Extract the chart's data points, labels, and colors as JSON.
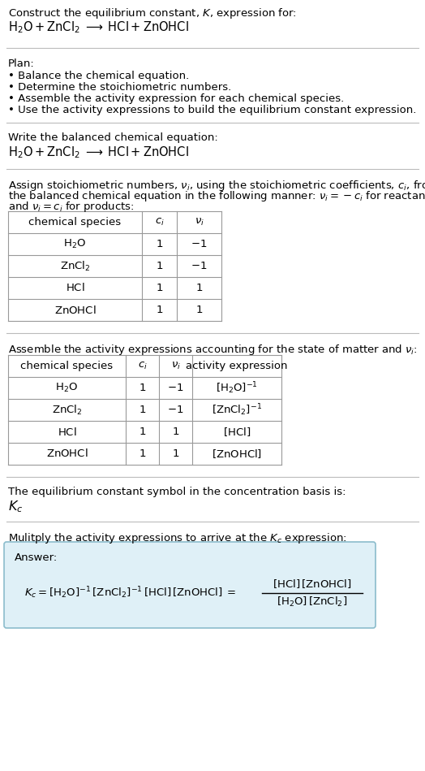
{
  "title_line1": "Construct the equilibrium constant, $K$, expression for:",
  "title_line2": "$\\mathrm{H_2O + ZnCl_2 \\;\\longrightarrow\\; HCl + ZnOHCl}$",
  "plan_header": "Plan:",
  "plan_items": [
    "• Balance the chemical equation.",
    "• Determine the stoichiometric numbers.",
    "• Assemble the activity expression for each chemical species.",
    "• Use the activity expressions to build the equilibrium constant expression."
  ],
  "section2_header": "Write the balanced chemical equation:",
  "section2_eq": "$\\mathrm{H_2O + ZnCl_2 \\;\\longrightarrow\\; HCl + ZnOHCl}$",
  "section3_header_l1": "Assign stoichiometric numbers, $\\nu_i$, using the stoichiometric coefficients, $c_i$, from",
  "section3_header_l2": "the balanced chemical equation in the following manner: $\\nu_i = -c_i$ for reactants",
  "section3_header_l3": "and $\\nu_i = c_i$ for products:",
  "table1_headers": [
    "chemical species",
    "$c_i$",
    "$\\nu_i$"
  ],
  "table1_rows": [
    [
      "$\\mathrm{H_2O}$",
      "1",
      "$-1$"
    ],
    [
      "$\\mathrm{ZnCl_2}$",
      "1",
      "$-1$"
    ],
    [
      "$\\mathrm{HCl}$",
      "1",
      "$1$"
    ],
    [
      "$\\mathrm{ZnOHCl}$",
      "1",
      "$1$"
    ]
  ],
  "section4_header": "Assemble the activity expressions accounting for the state of matter and $\\nu_i$:",
  "table2_headers": [
    "chemical species",
    "$c_i$",
    "$\\nu_i$",
    "activity expression"
  ],
  "table2_rows": [
    [
      "$\\mathrm{H_2O}$",
      "1",
      "$-1$",
      "$[\\mathrm{H_2O}]^{-1}$"
    ],
    [
      "$\\mathrm{ZnCl_2}$",
      "1",
      "$-1$",
      "$[\\mathrm{ZnCl_2}]^{-1}$"
    ],
    [
      "$\\mathrm{HCl}$",
      "1",
      "$1$",
      "$[\\mathrm{HCl}]$"
    ],
    [
      "$\\mathrm{ZnOHCl}$",
      "1",
      "$1$",
      "$[\\mathrm{ZnOHCl}]$"
    ]
  ],
  "section5_header": "The equilibrium constant symbol in the concentration basis is:",
  "section5_symbol": "$K_c$",
  "section6_header": "Mulitply the activity expressions to arrive at the $K_c$ expression:",
  "answer_label": "Answer:",
  "bg_color": "#ffffff",
  "answer_box_bg": "#dff0f7",
  "answer_box_border": "#8bbccc",
  "line_color": "#bbbbbb",
  "table_line_color": "#999999",
  "text_color": "#000000",
  "font_size": 9.5,
  "line_fs": 10.5
}
